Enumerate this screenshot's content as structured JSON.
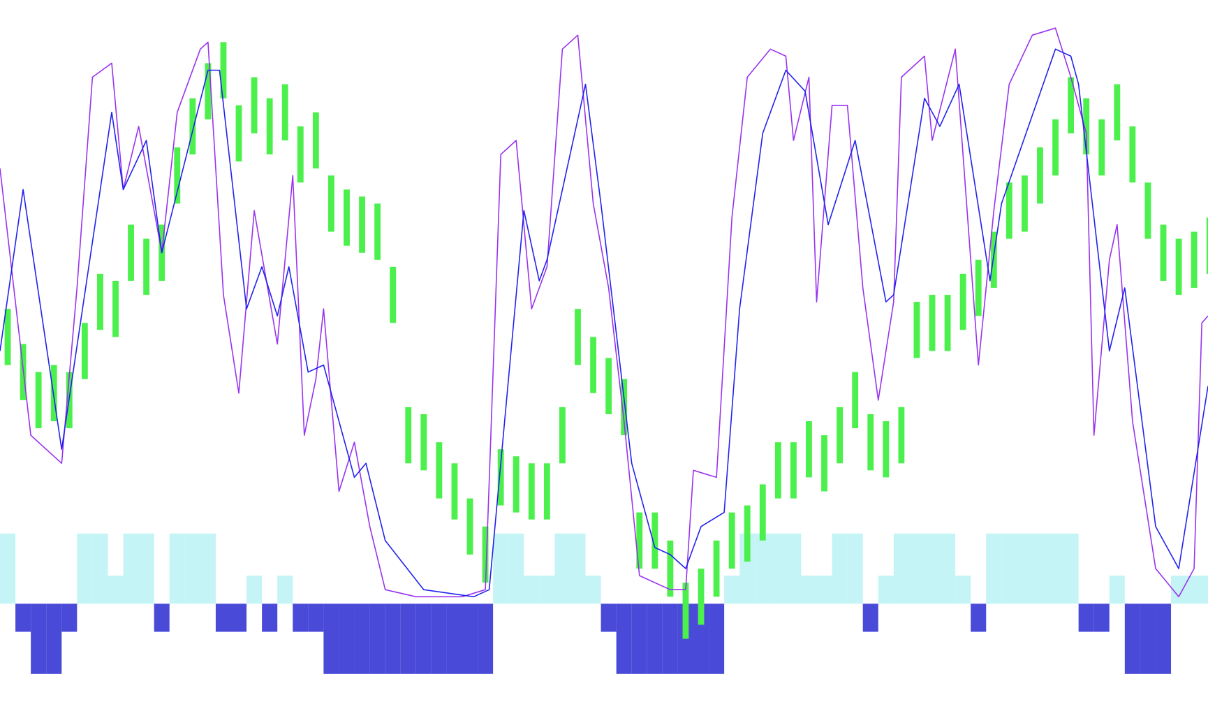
{
  "chart_data": {
    "type": "line",
    "xlim": [
      0,
      1568
    ],
    "ylim": [
      0,
      100
    ],
    "y2lim": [
      -14,
      86
    ],
    "x": [
      0,
      20,
      40,
      60,
      80,
      100,
      120,
      140,
      160,
      180,
      200,
      220,
      240,
      260,
      280,
      300,
      320,
      340,
      360,
      380,
      400,
      420,
      440,
      460,
      480,
      500,
      520,
      540,
      560,
      580,
      600,
      620,
      640,
      660,
      680,
      700,
      720,
      740,
      760,
      780,
      800,
      820,
      840,
      860,
      880,
      900,
      920,
      940,
      960,
      980,
      1000,
      1020,
      1040,
      1060,
      1080,
      1100,
      1120,
      1140,
      1160,
      1180,
      1200,
      1220,
      1240,
      1260,
      1280,
      1300,
      1320,
      1340,
      1360,
      1380,
      1400,
      1420,
      1440,
      1460,
      1480,
      1500,
      1520,
      1540,
      1560
    ],
    "series": [
      {
        "type": "bar",
        "axis": "y2",
        "color": "#c4f4f6",
        "negative_color": "#4a4ad8",
        "values": [
          10,
          -4,
          -10,
          -10,
          -4,
          10,
          10,
          4,
          10,
          10,
          -4,
          10,
          10,
          10,
          -4,
          -4,
          4,
          -4,
          4,
          -4,
          -4,
          -10,
          -10,
          -10,
          -10,
          -10,
          -10,
          -10,
          -10,
          -10,
          -10,
          -10,
          10,
          10,
          4,
          4,
          10,
          10,
          4,
          -4,
          -10,
          -10,
          -10,
          -10,
          -10,
          -10,
          -10,
          4,
          10,
          10,
          10,
          10,
          4,
          4,
          10,
          10,
          -4,
          4,
          10,
          10,
          10,
          10,
          4,
          -4,
          10,
          10,
          10,
          10,
          10,
          10,
          -4,
          -4,
          4,
          -10,
          -10,
          -10,
          4,
          4,
          4
        ]
      },
      {
        "type": "range",
        "color": "#4cf04c",
        "low": [
          48,
          43,
          39,
          40,
          39,
          46,
          53,
          52,
          60,
          58,
          60,
          71,
          78,
          83,
          86,
          77,
          81,
          78,
          80,
          74,
          76,
          67,
          65,
          64,
          63,
          54,
          34,
          33,
          29,
          26,
          21,
          17,
          28,
          27,
          26,
          26,
          34,
          48,
          44,
          41,
          38,
          19,
          19,
          15,
          9,
          11,
          15,
          19,
          20,
          23,
          29,
          29,
          32,
          30,
          34,
          39,
          33,
          32,
          34,
          49,
          50,
          50,
          53,
          55,
          59,
          66,
          67,
          71,
          75,
          81,
          78,
          75,
          80,
          74,
          66,
          60,
          58,
          59,
          61
        ],
        "high": [
          56,
          51,
          47,
          48,
          47,
          54,
          61,
          60,
          68,
          66,
          68,
          79,
          86,
          91,
          94,
          85,
          89,
          86,
          88,
          82,
          84,
          75,
          73,
          72,
          71,
          62,
          42,
          41,
          37,
          34,
          29,
          25,
          36,
          35,
          34,
          34,
          42,
          56,
          52,
          49,
          46,
          27,
          27,
          23,
          17,
          19,
          23,
          27,
          28,
          31,
          37,
          37,
          40,
          38,
          42,
          47,
          41,
          40,
          42,
          57,
          58,
          58,
          61,
          63,
          67,
          74,
          75,
          79,
          83,
          89,
          86,
          83,
          88,
          82,
          74,
          68,
          66,
          67,
          69
        ]
      },
      {
        "type": "line",
        "color": "#9933ee",
        "x": [
          0,
          40,
          80,
          100,
          120,
          145,
          160,
          180,
          200,
          210,
          230,
          260,
          270,
          290,
          310,
          330,
          360,
          380,
          395,
          410,
          420,
          440,
          460,
          480,
          500,
          540,
          600,
          630,
          650,
          670,
          690,
          710,
          730,
          750,
          770,
          790,
          810,
          830,
          870,
          890,
          900,
          930,
          950,
          970,
          1000,
          1020,
          1030,
          1050,
          1060,
          1080,
          1100,
          1120,
          1140,
          1160,
          1170,
          1200,
          1210,
          1240,
          1270,
          1290,
          1310,
          1340,
          1370,
          1390,
          1410,
          1420,
          1440,
          1450,
          1470,
          1500,
          1530,
          1550,
          1560,
          1568
        ],
        "values": [
          76,
          38,
          34,
          59,
          89,
          91,
          73,
          82,
          70,
          64,
          84,
          93,
          94,
          58,
          44,
          70,
          51,
          75,
          38,
          46,
          56,
          30,
          37,
          25,
          16,
          15,
          15,
          16,
          78,
          80,
          56,
          62,
          93,
          95,
          71,
          59,
          40,
          18,
          16,
          16,
          33,
          32,
          69,
          89,
          93,
          92,
          80,
          89,
          57,
          85,
          85,
          59,
          43,
          57,
          89,
          92,
          80,
          93,
          48,
          70,
          88,
          95,
          96,
          89,
          81,
          38,
          63,
          68,
          40,
          19,
          15,
          19,
          54,
          55
        ]
      },
      {
        "type": "line",
        "color": "#2222ee",
        "x": [
          0,
          30,
          80,
          145,
          160,
          190,
          210,
          270,
          285,
          320,
          340,
          360,
          375,
          400,
          420,
          460,
          475,
          500,
          550,
          615,
          635,
          680,
          700,
          710,
          760,
          780,
          820,
          850,
          870,
          890,
          910,
          940,
          960,
          990,
          1020,
          1045,
          1075,
          1110,
          1150,
          1160,
          1200,
          1220,
          1245,
          1285,
          1300,
          1370,
          1390,
          1400,
          1440,
          1460,
          1500,
          1530,
          1568
        ],
        "values": [
          50,
          73,
          36,
          84,
          73,
          80,
          64,
          90,
          90,
          56,
          62,
          55,
          62,
          47,
          48,
          32,
          34,
          23,
          16,
          15,
          16,
          70,
          60,
          63,
          88,
          71,
          34,
          22,
          21,
          19,
          25,
          27,
          56,
          81,
          90,
          87,
          68,
          80,
          57,
          58,
          86,
          82,
          88,
          60,
          71,
          93,
          92,
          88,
          50,
          59,
          25,
          19,
          45
        ]
      }
    ]
  }
}
